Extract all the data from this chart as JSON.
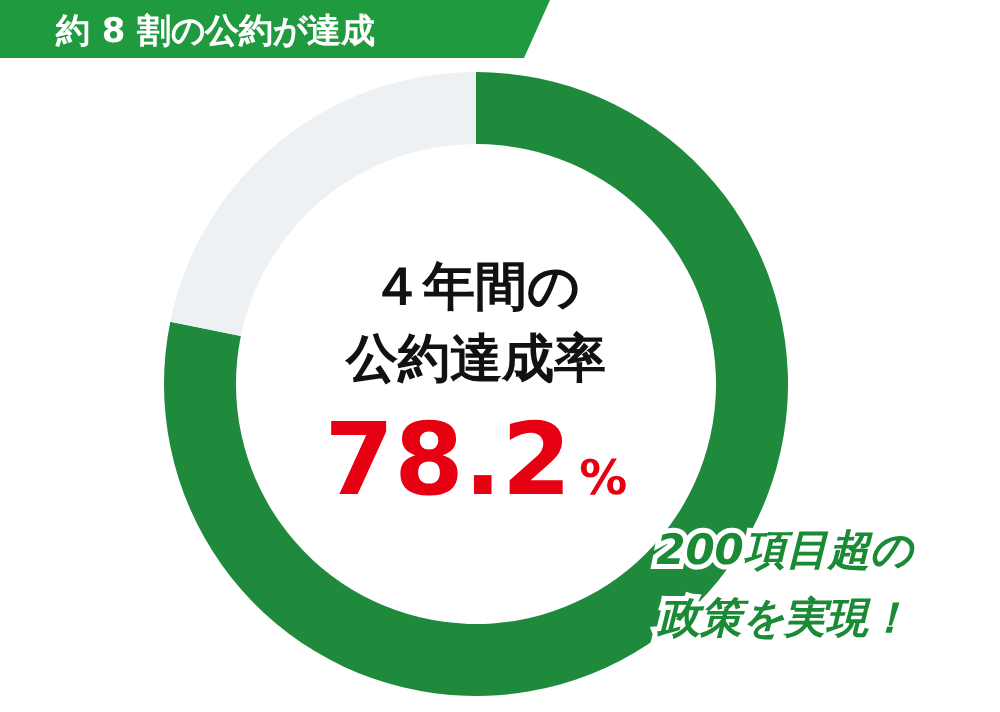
{
  "chart_data": {
    "type": "donut",
    "title": "約 8 割の公約が達成",
    "categories": [
      null,
      null
    ],
    "values": [
      78.2,
      21.8
    ],
    "colors": [
      "#1f8a3c",
      "#edf1f4"
    ],
    "value_labels": [
      "78.2%",
      null
    ],
    "annotations": [
      "４年間の",
      "公約達成率",
      "200項目超の",
      "政策を実現！"
    ]
  }
}
